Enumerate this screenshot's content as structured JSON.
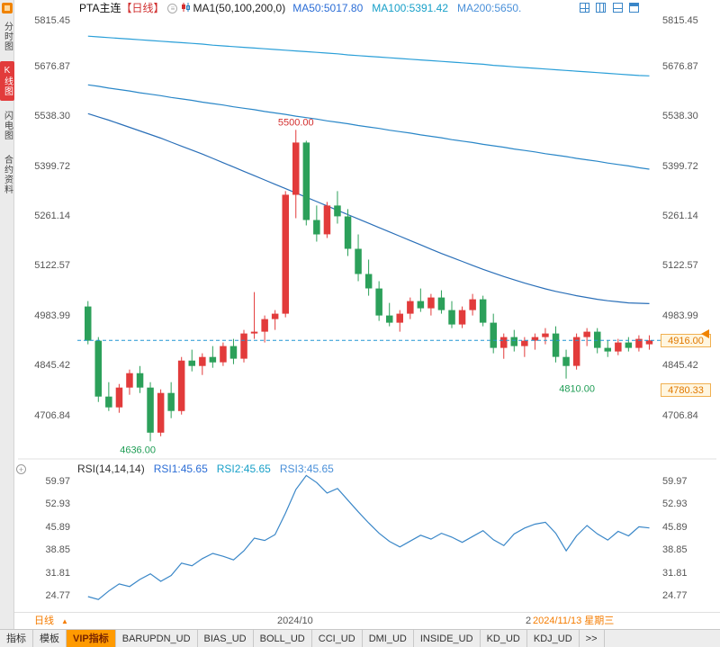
{
  "header": {
    "title": "PTA主连",
    "period_tag": "【日线】",
    "ma_label": "MA1(50,100,200,0)",
    "ma50": "MA50:5017.80",
    "ma100": "MA100:5391.42",
    "ma200": "MA200:5650."
  },
  "sidebar": {
    "items": [
      {
        "label": "分时图",
        "active": false
      },
      {
        "label": "K线图",
        "active": true
      },
      {
        "label": "闪电图",
        "active": false
      },
      {
        "label": "合约资料",
        "active": false
      }
    ]
  },
  "rsi_header": {
    "label": "RSI(14,14,14)",
    "rsi1": "RSI1:45.65",
    "rsi2": "RSI2:45.65",
    "rsi3": "RSI3:45.65"
  },
  "xaxis": {
    "period": "日线",
    "tick": "2024/10",
    "partial": "2",
    "current": "2024/11/13 星期三"
  },
  "tabbar": {
    "items": [
      {
        "label": "指标"
      },
      {
        "label": "模板"
      },
      {
        "label": "VIP指标",
        "active": true
      },
      {
        "label": "BARUPDN_UD"
      },
      {
        "label": "BIAS_UD"
      },
      {
        "label": "BOLL_UD"
      },
      {
        "label": "CCI_UD"
      },
      {
        "label": "DMI_UD"
      },
      {
        "label": "INSIDE_UD"
      },
      {
        "label": "KD_UD"
      },
      {
        "label": "KDJ_UD"
      },
      {
        "label": ">>"
      }
    ]
  },
  "chart_data": {
    "type": "candlestick",
    "title": "PTA主连 日线",
    "price_ticks": [
      5815.45,
      5676.87,
      5538.3,
      5399.72,
      5261.14,
      5122.57,
      4983.99,
      4845.42,
      4706.84
    ],
    "rsi_ticks": [
      59.97,
      52.93,
      45.89,
      38.85,
      31.81,
      24.77
    ],
    "last_price": 4916.0,
    "candles": [
      [
        5010,
        5025,
        4905,
        4915
      ],
      [
        4915,
        4925,
        4745,
        4760
      ],
      [
        4760,
        4800,
        4720,
        4730
      ],
      [
        4730,
        4795,
        4715,
        4785
      ],
      [
        4785,
        4835,
        4765,
        4825
      ],
      [
        4825,
        4845,
        4770,
        4785
      ],
      [
        4785,
        4800,
        4636,
        4660
      ],
      [
        4660,
        4780,
        4650,
        4770
      ],
      [
        4770,
        4800,
        4700,
        4720
      ],
      [
        4720,
        4870,
        4710,
        4860
      ],
      [
        4860,
        4890,
        4830,
        4845
      ],
      [
        4845,
        4880,
        4820,
        4870
      ],
      [
        4870,
        4900,
        4840,
        4855
      ],
      [
        4855,
        4910,
        4845,
        4900
      ],
      [
        4900,
        4920,
        4850,
        4865
      ],
      [
        4865,
        4945,
        4855,
        4935
      ],
      [
        4935,
        5050,
        4920,
        4940
      ],
      [
        4940,
        4985,
        4910,
        4975
      ],
      [
        4975,
        5000,
        4945,
        4990
      ],
      [
        4990,
        5330,
        4980,
        5320
      ],
      [
        5320,
        5500,
        5255,
        5465
      ],
      [
        5465,
        5470,
        5235,
        5250
      ],
      [
        5250,
        5290,
        5190,
        5210
      ],
      [
        5210,
        5300,
        5200,
        5290
      ],
      [
        5290,
        5330,
        5240,
        5260
      ],
      [
        5260,
        5280,
        5150,
        5170
      ],
      [
        5170,
        5210,
        5080,
        5100
      ],
      [
        5100,
        5140,
        5040,
        5060
      ],
      [
        5060,
        5080,
        4970,
        4985
      ],
      [
        4985,
        5020,
        4955,
        4965
      ],
      [
        4965,
        5000,
        4940,
        4990
      ],
      [
        4990,
        5035,
        4975,
        5025
      ],
      [
        5025,
        5060,
        4995,
        5005
      ],
      [
        5005,
        5045,
        4985,
        5035
      ],
      [
        5035,
        5055,
        4990,
        5000
      ],
      [
        5000,
        5025,
        4950,
        4960
      ],
      [
        4960,
        5010,
        4950,
        5000
      ],
      [
        5000,
        5045,
        4985,
        5030
      ],
      [
        5030,
        5040,
        4955,
        4965
      ],
      [
        4965,
        4990,
        4880,
        4895
      ],
      [
        4895,
        4935,
        4865,
        4925
      ],
      [
        4925,
        4945,
        4885,
        4900
      ],
      [
        4900,
        4925,
        4870,
        4915
      ],
      [
        4915,
        4935,
        4890,
        4925
      ],
      [
        4925,
        4950,
        4905,
        4935
      ],
      [
        4935,
        4955,
        4855,
        4870
      ],
      [
        4870,
        4890,
        4810,
        4845
      ],
      [
        4845,
        4935,
        4835,
        4925
      ],
      [
        4925,
        4950,
        4900,
        4940
      ],
      [
        4940,
        4950,
        4880,
        4895
      ],
      [
        4895,
        4915,
        4870,
        4885
      ],
      [
        4885,
        4920,
        4875,
        4910
      ],
      [
        4910,
        4925,
        4885,
        4895
      ],
      [
        4895,
        4930,
        4885,
        4920
      ],
      [
        4905,
        4930,
        4890,
        4916
      ]
    ],
    "ma50": [
      5545,
      5536,
      5527,
      5517,
      5507,
      5497,
      5487,
      5477,
      5466,
      5455,
      5444,
      5433,
      5421,
      5409,
      5397,
      5385,
      5373,
      5361,
      5349,
      5337,
      5325,
      5313,
      5301,
      5289,
      5277,
      5265,
      5253,
      5241,
      5229,
      5217,
      5205,
      5193,
      5181,
      5169,
      5157,
      5146,
      5135,
      5124,
      5113,
      5103,
      5093,
      5084,
      5075,
      5067,
      5059,
      5052,
      5046,
      5040,
      5035,
      5030,
      5026,
      5023,
      5020,
      5019,
      5018
    ],
    "ma100": [
      5625,
      5621,
      5616,
      5612,
      5608,
      5603,
      5599,
      5595,
      5590,
      5586,
      5582,
      5577,
      5573,
      5569,
      5564,
      5560,
      5556,
      5551,
      5547,
      5543,
      5538,
      5534,
      5530,
      5525,
      5521,
      5517,
      5512,
      5508,
      5504,
      5499,
      5495,
      5491,
      5486,
      5482,
      5478,
      5473,
      5469,
      5465,
      5460,
      5456,
      5452,
      5447,
      5443,
      5439,
      5434,
      5430,
      5426,
      5421,
      5417,
      5413,
      5408,
      5404,
      5400,
      5395,
      5391
    ],
    "ma200": [
      5760,
      5758,
      5756,
      5754,
      5752,
      5750,
      5748,
      5746,
      5744,
      5742,
      5740,
      5738,
      5735,
      5733,
      5731,
      5729,
      5727,
      5725,
      5723,
      5721,
      5719,
      5717,
      5715,
      5713,
      5711,
      5708,
      5706,
      5704,
      5702,
      5700,
      5698,
      5696,
      5694,
      5692,
      5690,
      5688,
      5686,
      5684,
      5682,
      5679,
      5677,
      5675,
      5673,
      5671,
      5669,
      5667,
      5665,
      5663,
      5661,
      5659,
      5657,
      5655,
      5653,
      5651,
      5650
    ],
    "rsi": [
      24.5,
      23.6,
      26.2,
      28.4,
      27.6,
      29.8,
      31.5,
      29.2,
      31.0,
      34.8,
      34.0,
      36.2,
      37.8,
      36.9,
      35.8,
      38.6,
      42.5,
      41.8,
      43.6,
      50.2,
      57.5,
      61.8,
      59.6,
      56.4,
      57.8,
      54.2,
      50.6,
      47.2,
      44.0,
      41.5,
      39.8,
      41.6,
      43.4,
      42.2,
      44.0,
      42.8,
      41.2,
      43.0,
      44.8,
      42.0,
      40.2,
      43.8,
      45.6,
      46.8,
      47.4,
      44.0,
      38.6,
      43.2,
      46.4,
      43.8,
      41.9,
      44.6,
      43.2,
      46.0,
      45.65
    ],
    "annotations": {
      "high": {
        "index": 20,
        "price": 5500,
        "label": "5500.00"
      },
      "low": {
        "index": 6,
        "price": 4636,
        "label": "4636.00"
      },
      "recent_low": {
        "index": 46,
        "price": 4810,
        "label": "4810.00"
      }
    },
    "right_badges": [
      {
        "label": "4916.00",
        "price": 4916.0
      },
      {
        "label": "4780.33",
        "price": 4780.33
      }
    ],
    "colors": {
      "up": "#e23b3b",
      "down": "#2ca05a",
      "ma50": "#2a6fb8",
      "ma100": "#2a87c8",
      "ma200": "#2a9fd8",
      "rsi": "#3a87c8",
      "dashed": "#2196d3",
      "annotation_high": "#d32f2f",
      "annotation_low": "#1f9d55"
    }
  }
}
